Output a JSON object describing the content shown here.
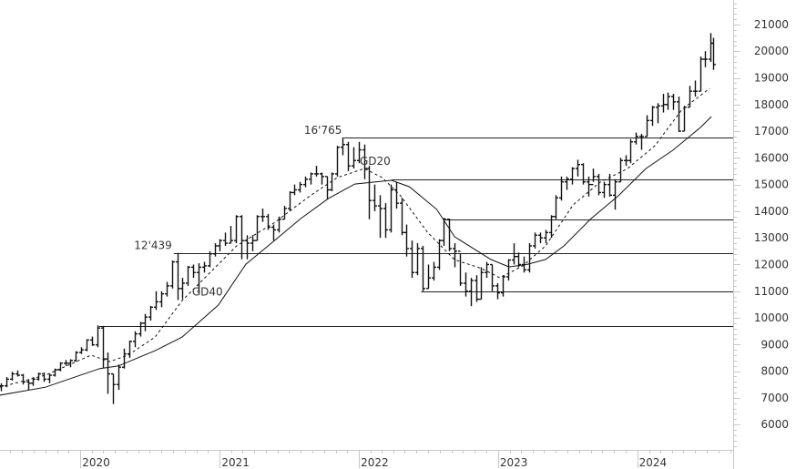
{
  "chart_data": {
    "type": "ohlc-bar",
    "title": "",
    "xlabel": "",
    "ylabel": "",
    "xlim": [
      "2019-06-04",
      "2024-09-09"
    ],
    "ylim": [
      5050,
      21920
    ],
    "y_ticks": [
      6000,
      7000,
      8000,
      9000,
      10000,
      11000,
      12000,
      13000,
      14000,
      15000,
      16000,
      17000,
      18000,
      19000,
      20000,
      21000
    ],
    "x_tick_labels": [
      "2020",
      "2021",
      "2022",
      "2023",
      "2024"
    ],
    "grid": false,
    "colors": {
      "bars": "#111111",
      "axis": "#c8c8c8",
      "text": "#333333"
    },
    "bars_format": [
      "date",
      "high",
      "low",
      "close"
    ],
    "bars": [
      [
        "2019-06-07",
        7550,
        7250,
        7450
      ],
      [
        "2019-06-21",
        7780,
        7400,
        7700
      ],
      [
        "2019-07-05",
        7980,
        7650,
        7900
      ],
      [
        "2019-07-19",
        8030,
        7800,
        7850
      ],
      [
        "2019-08-02",
        7900,
        7500,
        7600
      ],
      [
        "2019-08-16",
        7700,
        7300,
        7550
      ],
      [
        "2019-08-30",
        7780,
        7450,
        7700
      ],
      [
        "2019-09-13",
        7950,
        7650,
        7900
      ],
      [
        "2019-09-27",
        7950,
        7600,
        7700
      ],
      [
        "2019-10-11",
        7900,
        7550,
        7850
      ],
      [
        "2019-10-25",
        8100,
        7800,
        8050
      ],
      [
        "2019-11-08",
        8340,
        8000,
        8300
      ],
      [
        "2019-11-22",
        8420,
        8200,
        8300
      ],
      [
        "2019-12-06",
        8450,
        8150,
        8400
      ],
      [
        "2019-12-20",
        8750,
        8350,
        8700
      ],
      [
        "2020-01-03",
        8900,
        8650,
        8800
      ],
      [
        "2020-01-17",
        9200,
        8750,
        9170
      ],
      [
        "2020-01-31",
        9300,
        8950,
        8990
      ],
      [
        "2020-02-14",
        9720,
        8900,
        9620
      ],
      [
        "2020-02-28",
        9700,
        8130,
        8460
      ],
      [
        "2020-03-13",
        8700,
        7150,
        7900
      ],
      [
        "2020-03-27",
        7900,
        6770,
        7500
      ],
      [
        "2020-04-10",
        8250,
        7300,
        8150
      ],
      [
        "2020-04-24",
        8850,
        8100,
        8650
      ],
      [
        "2020-05-08",
        9150,
        8500,
        9120
      ],
      [
        "2020-05-22",
        9500,
        8900,
        9400
      ],
      [
        "2020-06-05",
        9850,
        9300,
        9800
      ],
      [
        "2020-06-19",
        10150,
        9500,
        10030
      ],
      [
        "2020-07-03",
        10450,
        9900,
        10400
      ],
      [
        "2020-07-17",
        11000,
        10300,
        10600
      ],
      [
        "2020-07-31",
        11000,
        10400,
        10900
      ],
      [
        "2020-08-14",
        11350,
        10800,
        11200
      ],
      [
        "2020-08-28",
        12150,
        11100,
        12100
      ],
      [
        "2020-09-11",
        12439,
        10670,
        11100
      ],
      [
        "2020-09-25",
        11500,
        10700,
        11300
      ],
      [
        "2020-10-09",
        11950,
        11200,
        11900
      ],
      [
        "2020-10-23",
        12000,
        11500,
        11700
      ],
      [
        "2020-11-06",
        12050,
        10900,
        11900
      ],
      [
        "2020-11-20",
        12100,
        11700,
        11950
      ],
      [
        "2020-12-04",
        12500,
        11900,
        12400
      ],
      [
        "2020-12-18",
        12800,
        12300,
        12700
      ],
      [
        "2021-01-01",
        12950,
        12500,
        12900
      ],
      [
        "2021-01-15",
        13200,
        12700,
        12800
      ],
      [
        "2021-01-29",
        13450,
        12800,
        12900
      ],
      [
        "2021-02-12",
        13850,
        12800,
        13800
      ],
      [
        "2021-02-26",
        13850,
        12200,
        12900
      ],
      [
        "2021-03-12",
        13100,
        12200,
        12800
      ],
      [
        "2021-03-26",
        13100,
        12500,
        12900
      ],
      [
        "2021-04-09",
        13850,
        12900,
        13800
      ],
      [
        "2021-04-23",
        14100,
        13600,
        13800
      ],
      [
        "2021-05-07",
        13900,
        13300,
        13400
      ],
      [
        "2021-05-21",
        13500,
        12900,
        13300
      ],
      [
        "2021-06-04",
        13800,
        13200,
        13700
      ],
      [
        "2021-06-18",
        14200,
        13700,
        14100
      ],
      [
        "2021-07-02",
        14750,
        14000,
        14700
      ],
      [
        "2021-07-16",
        15000,
        14600,
        14800
      ],
      [
        "2021-07-30",
        15100,
        14700,
        15000
      ],
      [
        "2021-08-13",
        15300,
        14900,
        15200
      ],
      [
        "2021-08-27",
        15450,
        15000,
        15400
      ],
      [
        "2021-09-10",
        15700,
        15300,
        15400
      ],
      [
        "2021-09-24",
        15450,
        15000,
        15300
      ],
      [
        "2021-10-08",
        15300,
        14450,
        14800
      ],
      [
        "2021-10-22",
        15450,
        14750,
        15400
      ],
      [
        "2021-11-05",
        16450,
        15300,
        16400
      ],
      [
        "2021-11-19",
        16765,
        16100,
        16500
      ],
      [
        "2021-12-03",
        16600,
        15500,
        15700
      ],
      [
        "2021-12-17",
        16400,
        15600,
        15900
      ],
      [
        "2021-12-31",
        16600,
        15800,
        16300
      ],
      [
        "2022-01-14",
        16500,
        15200,
        15600
      ],
      [
        "2022-01-28",
        15700,
        13700,
        14400
      ],
      [
        "2022-02-11",
        15000,
        14000,
        14200
      ],
      [
        "2022-02-25",
        14600,
        13000,
        14100
      ],
      [
        "2022-03-11",
        14300,
        13000,
        13300
      ],
      [
        "2022-03-25",
        15000,
        13200,
        14800
      ],
      [
        "2022-04-08",
        15100,
        14100,
        14300
      ],
      [
        "2022-04-22",
        14500,
        13100,
        13200
      ],
      [
        "2022-05-06",
        13500,
        12300,
        12600
      ],
      [
        "2022-05-20",
        12900,
        11500,
        11700
      ],
      [
        "2022-06-03",
        12800,
        11600,
        12600
      ],
      [
        "2022-06-17",
        12700,
        11000,
        11100
      ],
      [
        "2022-07-01",
        12000,
        11100,
        11500
      ],
      [
        "2022-07-15",
        12100,
        11400,
        11900
      ],
      [
        "2022-07-29",
        12950,
        11800,
        12900
      ],
      [
        "2022-08-12",
        13750,
        12700,
        13700
      ],
      [
        "2022-08-26",
        13720,
        12500,
        12600
      ],
      [
        "2022-09-09",
        12800,
        11900,
        12500
      ],
      [
        "2022-09-23",
        12400,
        11200,
        11300
      ],
      [
        "2022-10-07",
        11700,
        10800,
        11000
      ],
      [
        "2022-10-21",
        11500,
        10440,
        11400
      ],
      [
        "2022-11-04",
        11600,
        10600,
        10700
      ],
      [
        "2022-11-18",
        11900,
        10700,
        11700
      ],
      [
        "2022-12-02",
        12100,
        11500,
        12000
      ],
      [
        "2022-12-16",
        12000,
        11000,
        11200
      ],
      [
        "2022-12-30",
        11300,
        10700,
        10940
      ],
      [
        "2023-01-13",
        11600,
        10800,
        11540
      ],
      [
        "2023-01-27",
        12200,
        11400,
        12170
      ],
      [
        "2023-02-10",
        12800,
        12000,
        12300
      ],
      [
        "2023-02-24",
        12450,
        11900,
        12000
      ],
      [
        "2023-03-10",
        12300,
        11700,
        11800
      ],
      [
        "2023-03-24",
        12800,
        11700,
        12700
      ],
      [
        "2023-04-07",
        13200,
        12600,
        13100
      ],
      [
        "2023-04-21",
        13200,
        12800,
        13000
      ],
      [
        "2023-05-05",
        13300,
        12800,
        13200
      ],
      [
        "2023-05-19",
        13850,
        13000,
        13800
      ],
      [
        "2023-06-02",
        14600,
        13700,
        14500
      ],
      [
        "2023-06-16",
        15300,
        14400,
        15100
      ],
      [
        "2023-06-30",
        15300,
        14800,
        15200
      ],
      [
        "2023-07-14",
        15650,
        15000,
        15600
      ],
      [
        "2023-07-28",
        15930,
        15300,
        15750
      ],
      [
        "2023-08-11",
        15800,
        15000,
        15100
      ],
      [
        "2023-08-25",
        15300,
        14550,
        15000
      ],
      [
        "2023-09-08",
        15600,
        15100,
        15300
      ],
      [
        "2023-09-22",
        15400,
        14600,
        14700
      ],
      [
        "2023-10-06",
        15100,
        14500,
        15000
      ],
      [
        "2023-10-20",
        15400,
        14550,
        14600
      ],
      [
        "2023-11-03",
        15200,
        14060,
        15100
      ],
      [
        "2023-11-17",
        16000,
        15100,
        15900
      ],
      [
        "2023-12-01",
        16100,
        15700,
        15900
      ],
      [
        "2023-12-15",
        16700,
        15800,
        16600
      ],
      [
        "2023-12-29",
        16950,
        16500,
        16800
      ],
      [
        "2024-01-12",
        16900,
        16300,
        16800
      ],
      [
        "2024-01-26",
        17600,
        16800,
        17400
      ],
      [
        "2024-02-09",
        17950,
        17200,
        17900
      ],
      [
        "2024-02-23",
        18050,
        17300,
        17950
      ],
      [
        "2024-03-08",
        18400,
        17700,
        18000
      ],
      [
        "2024-03-22",
        18450,
        17800,
        18300
      ],
      [
        "2024-04-05",
        18400,
        17800,
        18100
      ],
      [
        "2024-04-19",
        18300,
        16970,
        17000
      ],
      [
        "2024-05-03",
        17950,
        17000,
        17900
      ],
      [
        "2024-05-17",
        18700,
        17900,
        18500
      ],
      [
        "2024-05-31",
        18900,
        18300,
        18500
      ],
      [
        "2024-06-14",
        19800,
        18500,
        19700
      ],
      [
        "2024-06-28",
        20000,
        19400,
        19700
      ],
      [
        "2024-07-12",
        20680,
        19600,
        20300
      ],
      [
        "2024-07-19",
        20500,
        19300,
        19500
      ]
    ],
    "series": [
      {
        "name": "GD20",
        "style": "dashed",
        "points": [
          [
            "2019-06-03",
            7400
          ],
          [
            "2019-10-01",
            7850
          ],
          [
            "2020-01-29",
            8600
          ],
          [
            "2020-03-17",
            8360
          ],
          [
            "2020-05-05",
            8600
          ],
          [
            "2020-07-15",
            9280
          ],
          [
            "2020-09-24",
            10650
          ],
          [
            "2020-12-05",
            11680
          ],
          [
            "2021-02-14",
            12700
          ],
          [
            "2021-05-22",
            13550
          ],
          [
            "2021-08-25",
            14570
          ],
          [
            "2021-11-05",
            15260
          ],
          [
            "2022-01-15",
            15600
          ],
          [
            "2022-03-03",
            15260
          ],
          [
            "2022-04-20",
            14580
          ],
          [
            "2022-06-30",
            13210
          ],
          [
            "2022-09-09",
            12180
          ],
          [
            "2022-11-19",
            11850
          ],
          [
            "2023-01-06",
            11500
          ],
          [
            "2023-03-07",
            11950
          ],
          [
            "2023-05-06",
            12700
          ],
          [
            "2023-07-17",
            14240
          ],
          [
            "2023-09-26",
            15090
          ],
          [
            "2023-12-07",
            15600
          ],
          [
            "2024-02-17",
            16460
          ],
          [
            "2024-04-28",
            17820
          ],
          [
            "2024-07-09",
            18600
          ]
        ]
      },
      {
        "name": "GD40",
        "style": "solid",
        "points": [
          [
            "2019-06-03",
            7100
          ],
          [
            "2019-10-01",
            7400
          ],
          [
            "2020-02-21",
            8100
          ],
          [
            "2020-04-10",
            8200
          ],
          [
            "2020-07-15",
            8770
          ],
          [
            "2020-09-24",
            9280
          ],
          [
            "2020-12-28",
            10480
          ],
          [
            "2021-03-10",
            12010
          ],
          [
            "2021-05-22",
            12870
          ],
          [
            "2021-08-01",
            13720
          ],
          [
            "2021-10-12",
            14470
          ],
          [
            "2021-12-21",
            15020
          ],
          [
            "2022-02-08",
            15090
          ],
          [
            "2022-03-27",
            15160
          ],
          [
            "2022-05-13",
            14920
          ],
          [
            "2022-07-24",
            14070
          ],
          [
            "2022-09-09",
            13040
          ],
          [
            "2022-12-13",
            12190
          ],
          [
            "2023-01-30",
            11910
          ],
          [
            "2023-03-19",
            12010
          ],
          [
            "2023-05-06",
            12190
          ],
          [
            "2023-06-23",
            12700
          ],
          [
            "2023-09-02",
            13720
          ],
          [
            "2023-11-13",
            14580
          ],
          [
            "2024-01-24",
            15600
          ],
          [
            "2024-04-04",
            16290
          ],
          [
            "2024-06-15",
            17140
          ],
          [
            "2024-07-14",
            17550
          ]
        ]
      }
    ],
    "horizontal_lines": [
      {
        "value": 16765,
        "from": "2021-11-22"
      },
      {
        "value": 15200,
        "from": "2022-03-28"
      },
      {
        "value": 13700,
        "from": "2022-08-15"
      },
      {
        "value": 12439,
        "from": "2020-09-02"
      },
      {
        "value": 11000,
        "from": "2022-06-13"
      },
      {
        "value": 9700,
        "from": "2020-02-19"
      }
    ],
    "annotations": [
      {
        "text": "16'765",
        "date": "2021-11-22",
        "value": 16765,
        "anchor": "end"
      },
      {
        "text": "12'439",
        "date": "2020-09-02",
        "value": 12439,
        "anchor": "end"
      },
      {
        "text": "GD20",
        "date": "2022-01-03",
        "value": 15600,
        "anchor": "start"
      },
      {
        "text": "GD40",
        "date": "2020-10-20",
        "value": 10700,
        "anchor": "start"
      }
    ]
  }
}
